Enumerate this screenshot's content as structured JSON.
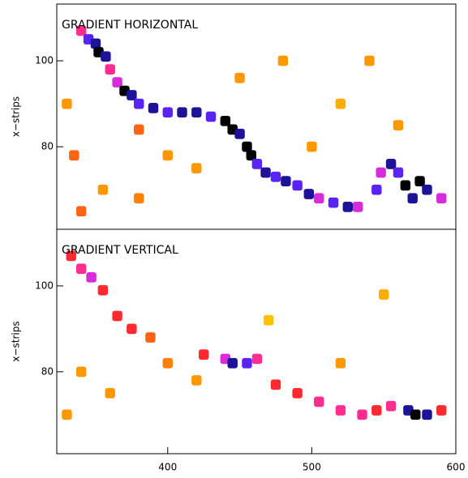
{
  "chart_data": [
    {
      "type": "heatmap",
      "title": "GRADIENT HORIZONTAL",
      "y_label": "x−strips",
      "xlim": [
        323,
        600
      ],
      "ylim": [
        60.8,
        113.2
      ],
      "yticks": [
        80,
        100
      ],
      "cell_width": 7,
      "cell_height": 2.4,
      "colormap": [
        "#ffffff",
        "#ffd000",
        "#ff8a00",
        "#ff2a30",
        "#ff2fd0",
        "#3020ff",
        "#000000"
      ],
      "x": [
        340,
        345,
        350,
        352,
        357,
        360,
        365,
        370,
        375,
        380,
        390,
        400,
        410,
        420,
        430,
        440,
        445,
        450,
        455,
        458,
        462,
        468,
        475,
        482,
        490,
        498,
        505,
        515,
        525,
        532,
        545,
        548,
        555,
        560,
        565,
        570,
        575,
        580,
        590,
        330,
        335,
        355,
        380,
        400,
        420,
        450,
        500,
        520,
        540,
        560,
        340,
        380,
        480
      ],
      "y": [
        107,
        105,
        104,
        102,
        101,
        98,
        95,
        93,
        92,
        90,
        89,
        88,
        88,
        88,
        87,
        86,
        84,
        83,
        80,
        78,
        76,
        74,
        73,
        72,
        71,
        69,
        68,
        67,
        66,
        66,
        70,
        74,
        76,
        74,
        71,
        68,
        72,
        70,
        68,
        90,
        78,
        70,
        84,
        78,
        75,
        96,
        80,
        90,
        100,
        85,
        65,
        68,
        100
      ],
      "values": [
        0.6,
        0.8,
        0.9,
        1,
        0.9,
        0.6,
        0.7,
        1,
        0.9,
        0.8,
        0.9,
        0.8,
        0.9,
        0.9,
        0.8,
        1,
        1,
        0.9,
        1,
        1,
        0.8,
        0.9,
        0.8,
        0.9,
        0.8,
        0.9,
        0.7,
        0.8,
        0.9,
        0.7,
        0.8,
        0.7,
        0.9,
        0.8,
        1,
        0.9,
        1,
        0.9,
        0.7,
        0.3,
        0.4,
        0.3,
        0.4,
        0.3,
        0.3,
        0.3,
        0.3,
        0.25,
        0.3,
        0.3,
        0.4,
        0.35,
        0.3
      ]
    },
    {
      "type": "heatmap",
      "title": "GRADIENT VERTICAL",
      "y_label": "x−strips",
      "xlim": [
        323,
        600
      ],
      "ylim": [
        60.9,
        113.2
      ],
      "yticks": [
        80,
        100
      ],
      "xticks": [
        400,
        500,
        600
      ],
      "cell_width": 7,
      "cell_height": 2.4,
      "colormap": [
        "#ffffff",
        "#ffd000",
        "#ff8a00",
        "#ff2a30",
        "#ff2fd0",
        "#3020ff",
        "#000000"
      ],
      "x": [
        333,
        340,
        347,
        355,
        365,
        375,
        388,
        425,
        440,
        445,
        455,
        462,
        475,
        490,
        505,
        520,
        535,
        545,
        555,
        567,
        572,
        580,
        590,
        340,
        360,
        400,
        420,
        470,
        520,
        550,
        330
      ],
      "y": [
        107,
        104,
        102,
        99,
        93,
        90,
        88,
        84,
        83,
        82,
        82,
        83,
        77,
        75,
        73,
        71,
        70,
        71,
        72,
        71,
        70,
        70,
        71,
        80,
        75,
        82,
        78,
        92,
        82,
        98,
        70
      ],
      "values": [
        0.5,
        0.6,
        0.7,
        0.5,
        0.5,
        0.5,
        0.4,
        0.5,
        0.7,
        0.9,
        0.8,
        0.6,
        0.5,
        0.5,
        0.6,
        0.6,
        0.6,
        0.5,
        0.6,
        0.9,
        1,
        0.9,
        0.5,
        0.3,
        0.3,
        0.35,
        0.3,
        0.2,
        0.3,
        0.25,
        0.3
      ]
    }
  ]
}
